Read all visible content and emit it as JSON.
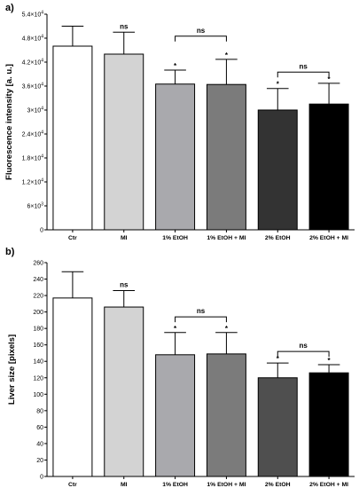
{
  "chart_data": [
    {
      "type": "bar",
      "panel_label": "a)",
      "ylabel": "Fluorescence intensity [a. u.]",
      "ylim": [
        0,
        54000
      ],
      "yticks": [
        0,
        6000,
        12000,
        18000,
        24000,
        30000,
        36000,
        42000,
        48000,
        54000
      ],
      "ytick_labels": [
        {
          "base": "0",
          "exp": ""
        },
        {
          "base": "6×10",
          "exp": "3"
        },
        {
          "base": "1.2×10",
          "exp": "4"
        },
        {
          "base": "1.8×10",
          "exp": "4"
        },
        {
          "base": "2.4×10",
          "exp": "4"
        },
        {
          "base": "3×10",
          "exp": "4"
        },
        {
          "base": "3.6×10",
          "exp": "4"
        },
        {
          "base": "4.2×10",
          "exp": "4"
        },
        {
          "base": "4.8×10",
          "exp": "4"
        },
        {
          "base": "5.4×10",
          "exp": "4"
        }
      ],
      "categories": [
        "Ctr",
        "MI",
        "1% EtOH",
        "1% EtOH + MI",
        "2% EtOH",
        "2% EtOH + MI"
      ],
      "values": [
        46000,
        44000,
        36500,
        36400,
        30000,
        31500
      ],
      "errors": [
        5000,
        5500,
        3500,
        6300,
        5400,
        5200
      ],
      "colors": [
        "#ffffff",
        "#d3d3d3",
        "#a9a9ad",
        "#7b7b7b",
        "#333333",
        "#000000"
      ],
      "bar_labels": [
        "",
        "ns",
        "*",
        "*",
        "*",
        "*"
      ],
      "brackets": [
        {
          "from": 2,
          "to": 3,
          "y": 48500,
          "label": "ns"
        },
        {
          "from": 4,
          "to": 5,
          "y": 39500,
          "label": "ns"
        }
      ],
      "grid": false,
      "legend": "none"
    },
    {
      "type": "bar",
      "panel_label": "b)",
      "ylabel": "Liver size [pixels]",
      "ylim": [
        0,
        260
      ],
      "yticks": [
        0,
        20,
        40,
        60,
        80,
        100,
        120,
        140,
        160,
        180,
        200,
        220,
        240,
        260
      ],
      "ytick_labels": [
        {
          "base": "0",
          "exp": ""
        },
        {
          "base": "20",
          "exp": ""
        },
        {
          "base": "40",
          "exp": ""
        },
        {
          "base": "60",
          "exp": ""
        },
        {
          "base": "80",
          "exp": ""
        },
        {
          "base": "100",
          "exp": ""
        },
        {
          "base": "120",
          "exp": ""
        },
        {
          "base": "140",
          "exp": ""
        },
        {
          "base": "160",
          "exp": ""
        },
        {
          "base": "180",
          "exp": ""
        },
        {
          "base": "200",
          "exp": ""
        },
        {
          "base": "220",
          "exp": ""
        },
        {
          "base": "240",
          "exp": ""
        },
        {
          "base": "260",
          "exp": ""
        }
      ],
      "categories": [
        "Ctr",
        "MI",
        "1% EtOH",
        "1% EtOH + MI",
        "2% EtOH",
        "2% EtOH + MI"
      ],
      "values": [
        217,
        206,
        148,
        149,
        120,
        126
      ],
      "errors": [
        32,
        20,
        27,
        26,
        18,
        10
      ],
      "colors": [
        "#ffffff",
        "#d3d3d3",
        "#a9a9ad",
        "#7b7b7b",
        "#4f4f4f",
        "#000000"
      ],
      "bar_labels": [
        "",
        "ns",
        "*",
        "*",
        "*",
        "*"
      ],
      "brackets": [
        {
          "from": 2,
          "to": 3,
          "y": 194,
          "label": "ns"
        },
        {
          "from": 4,
          "to": 5,
          "y": 152,
          "label": "ns"
        }
      ],
      "grid": false,
      "legend": "none"
    }
  ]
}
